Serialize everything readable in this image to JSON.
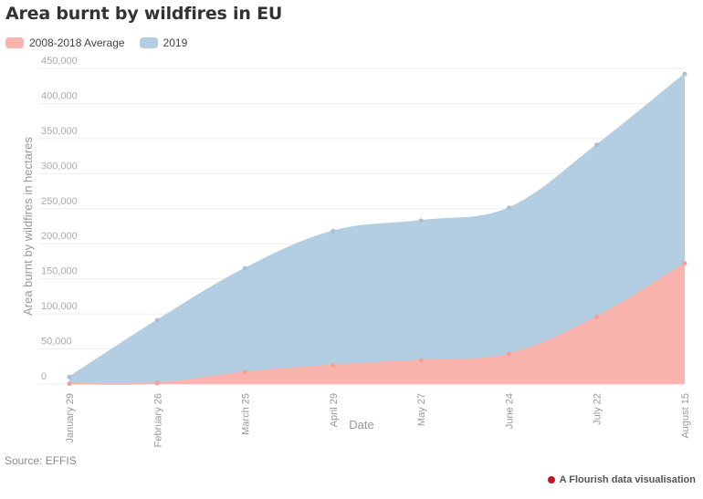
{
  "chart_data": {
    "type": "area",
    "title": "Area burnt by wildfires in EU",
    "xlabel": "Date",
    "ylabel": "Area burnt by wildfires in hectares",
    "categories": [
      "January 29",
      "February 26",
      "March 25",
      "April 29",
      "May 27",
      "June 24",
      "July 22",
      "August 15"
    ],
    "ylim": [
      0,
      450000
    ],
    "yticks": [
      0,
      50000,
      100000,
      150000,
      200000,
      250000,
      300000,
      350000,
      400000,
      450000
    ],
    "ytick_labels": [
      "0",
      "50,000",
      "100,000",
      "150,000",
      "200,000",
      "250,000",
      "300,000",
      "350,000",
      "400,000",
      "450,000"
    ],
    "grid": true,
    "legend_position": "top-left",
    "series": [
      {
        "name": "2019",
        "color": "#b3cde3",
        "values": [
          10000,
          91000,
          165000,
          218000,
          233000,
          251000,
          341000,
          442000
        ]
      },
      {
        "name": "2008-2018 Average",
        "color": "#f9b4ae",
        "values": [
          500,
          1500,
          17000,
          27000,
          34000,
          43000,
          96000,
          172000
        ]
      }
    ],
    "legend": [
      {
        "label": "2008-2018 Average",
        "color": "#f9b4ae"
      },
      {
        "label": "2019",
        "color": "#b3cde3"
      }
    ]
  },
  "footer": {
    "source": "Source: EFFIS",
    "credit": "A Flourish data visualisation"
  }
}
